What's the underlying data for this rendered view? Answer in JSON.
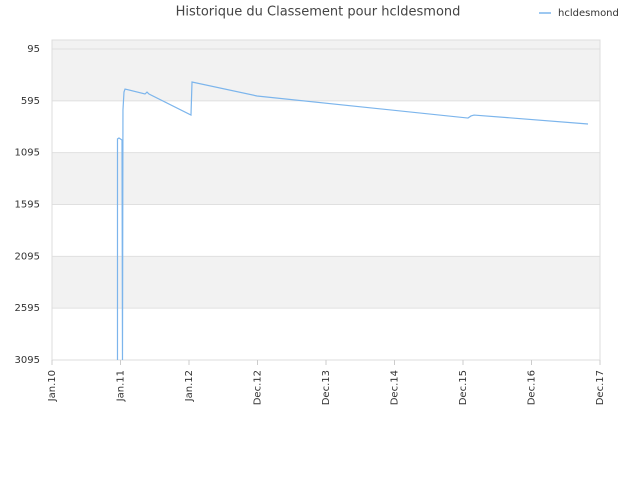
{
  "chart_data": {
    "type": "line",
    "title": "Historique du Classement pour hcldesmond",
    "x": [
      0.956,
      0.956,
      0.978,
      1.022,
      1.029,
      1.036,
      1.051,
      1.066,
      1.358,
      1.387,
      1.416,
      2.029,
      2.044,
      2.993,
      6.073,
      6.117,
      6.161,
      7.825
    ],
    "series": [
      {
        "name": "hcldesmond",
        "color": "#7cb5ec",
        "values": [
          3095,
          963,
          953,
          973,
          3095,
          683,
          510,
          481,
          529,
          510,
          529,
          732,
          413,
          548,
          761,
          741,
          732,
          818
        ]
      }
    ],
    "xlim": [
      0,
      8
    ],
    "xticks": [
      {
        "value": 0,
        "label": "Jan.10"
      },
      {
        "value": 1,
        "label": "Jan.11"
      },
      {
        "value": 2,
        "label": "Jan.12"
      },
      {
        "value": 3,
        "label": "Dec.12"
      },
      {
        "value": 4,
        "label": "Dec.13"
      },
      {
        "value": 5,
        "label": "Dec.14"
      },
      {
        "value": 6,
        "label": "Dec.15"
      },
      {
        "value": 7,
        "label": "Dec.16"
      },
      {
        "value": 8,
        "label": "Dec.17"
      }
    ],
    "ylim": [
      3095,
      8
    ],
    "yticks": [
      95,
      595,
      1095,
      1595,
      2095,
      2595,
      3095
    ],
    "grid": true,
    "legend": "top-right"
  }
}
